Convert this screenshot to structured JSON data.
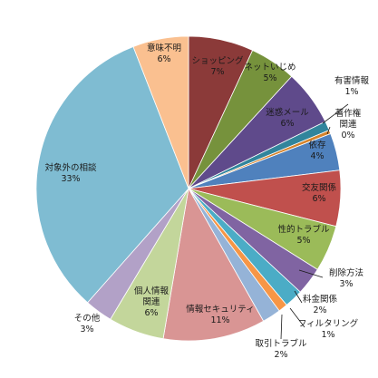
{
  "chart_data": {
    "type": "pie",
    "start_angle_deg": 0,
    "direction": "clockwise",
    "slices": [
      {
        "label": "ショッピング",
        "value": 7,
        "pct_label": "7%",
        "color": "#8b3a39"
      },
      {
        "label": "ネットいじめ",
        "value": 5,
        "pct_label": "5%",
        "color": "#76923c"
      },
      {
        "label": "迷惑メール",
        "value": 6,
        "pct_label": "6%",
        "color": "#5f4a8b"
      },
      {
        "label": "有害情報",
        "value": 1,
        "pct_label": "1%",
        "color": "#31859c"
      },
      {
        "label": "著作権関連",
        "value": 0.4,
        "pct_label": "0%",
        "color": "#d5822a"
      },
      {
        "label": "依存",
        "value": 4,
        "pct_label": "4%",
        "color": "#4f81bd"
      },
      {
        "label": "交友関係",
        "value": 6,
        "pct_label": "6%",
        "color": "#c0504d"
      },
      {
        "label": "性的トラブル",
        "value": 5,
        "pct_label": "5%",
        "color": "#9bbb59"
      },
      {
        "label": "削除方法",
        "value": 3,
        "pct_label": "3%",
        "color": "#8064a2"
      },
      {
        "label": "料金関係",
        "value": 2,
        "pct_label": "2%",
        "color": "#4bacc6"
      },
      {
        "label": "フィルタリング",
        "value": 1,
        "pct_label": "1%",
        "color": "#f79646"
      },
      {
        "label": "取引トラブル",
        "value": 2,
        "pct_label": "2%",
        "color": "#95b3d7"
      },
      {
        "label": "情報セキュリティ",
        "value": 11,
        "pct_label": "11%",
        "color": "#d99594"
      },
      {
        "label": "個人情報関連",
        "value": 6,
        "pct_label": "6%",
        "color": "#c3d69b"
      },
      {
        "label": "その他",
        "value": 3,
        "pct_label": "3%",
        "color": "#b2a1c7"
      },
      {
        "label": "対象外の相談",
        "value": 33,
        "pct_label": "33%",
        "color": "#7fbcd2"
      },
      {
        "label": "意味不明",
        "value": 6,
        "pct_label": "6%",
        "color": "#fac090"
      }
    ]
  }
}
